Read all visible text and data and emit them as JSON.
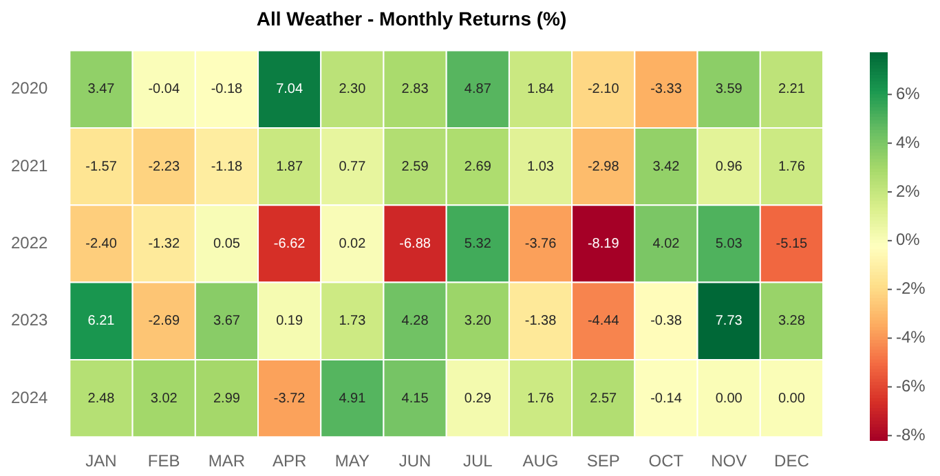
{
  "chart_data": {
    "type": "heatmap",
    "title": "All Weather - Monthly Returns (%)",
    "categories": [
      "JAN",
      "FEB",
      "MAR",
      "APR",
      "MAY",
      "JUN",
      "JUL",
      "AUG",
      "SEP",
      "OCT",
      "NOV",
      "DEC"
    ],
    "y_categories": [
      "2020",
      "2021",
      "2022",
      "2023",
      "2024"
    ],
    "cells": [
      [
        3.47,
        -0.04,
        -0.18,
        7.04,
        2.3,
        2.83,
        4.87,
        1.84,
        -2.1,
        -3.33,
        3.59,
        2.21
      ],
      [
        -1.57,
        -2.23,
        -1.18,
        1.87,
        0.77,
        2.59,
        2.69,
        1.03,
        -2.98,
        3.42,
        0.96,
        1.76
      ],
      [
        -2.4,
        -1.32,
        0.05,
        -6.62,
        0.02,
        -6.88,
        5.32,
        -3.76,
        -8.19,
        4.02,
        5.03,
        -5.15
      ],
      [
        6.21,
        -2.69,
        3.67,
        0.19,
        1.73,
        4.28,
        3.2,
        -1.38,
        -4.44,
        -0.38,
        7.73,
        3.28
      ],
      [
        2.48,
        3.02,
        2.99,
        -3.72,
        4.91,
        4.15,
        0.29,
        1.76,
        2.57,
        -0.14,
        0.0,
        0.0
      ]
    ],
    "cell_labels": [
      [
        "3.47",
        "-0.04",
        "-0.18",
        "7.04",
        "2.30",
        "2.83",
        "4.87",
        "1.84",
        "-2.10",
        "-3.33",
        "3.59",
        "2.21"
      ],
      [
        "-1.57",
        "-2.23",
        "-1.18",
        "1.87",
        "0.77",
        "2.59",
        "2.69",
        "1.03",
        "-2.98",
        "3.42",
        "0.96",
        "1.76"
      ],
      [
        "-2.40",
        "-1.32",
        "0.05",
        "-6.62",
        "0.02",
        "-6.88",
        "5.32",
        "-3.76",
        "-8.19",
        "4.02",
        "5.03",
        "-5.15"
      ],
      [
        "6.21",
        "-2.69",
        "3.67",
        "0.19",
        "1.73",
        "4.28",
        "3.20",
        "-1.38",
        "-4.44",
        "-0.38",
        "7.73",
        "3.28"
      ],
      [
        "2.48",
        "3.02",
        "2.99",
        "-3.72",
        "4.91",
        "4.15",
        "0.29",
        "1.76",
        "2.57",
        "-0.14",
        "0.00",
        "0.00"
      ]
    ],
    "clim": [
      -8.19,
      7.73
    ],
    "cticks": [
      {
        "value": -8,
        "label": "-8%"
      },
      {
        "value": -6,
        "label": "-6%"
      },
      {
        "value": -4,
        "label": "-4%"
      },
      {
        "value": -2,
        "label": "-2%"
      },
      {
        "value": 0,
        "label": "0%"
      },
      {
        "value": 2,
        "label": "2%"
      },
      {
        "value": 4,
        "label": "4%"
      },
      {
        "value": 6,
        "label": "6%"
      }
    ]
  }
}
